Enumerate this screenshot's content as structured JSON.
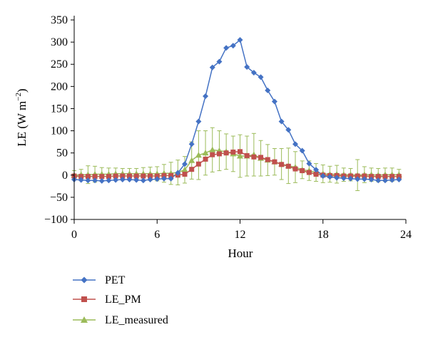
{
  "chart_data": {
    "type": "line",
    "xlabel": "Hour",
    "ylabel_main": "LE (W m",
    "ylabel_sup": "−2",
    "ylabel_close": ")",
    "xlim": [
      0,
      24
    ],
    "ylim": [
      -100,
      350
    ],
    "xticks": [
      "0",
      "6",
      "12",
      "18",
      "24"
    ],
    "yticks": [
      "−100",
      "−50",
      "0",
      "50",
      "100",
      "150",
      "200",
      "250",
      "300",
      "350"
    ],
    "grid": false,
    "legend_position": "bottom-left",
    "x": [
      0,
      0.5,
      1,
      1.5,
      2,
      2.5,
      3,
      3.5,
      4,
      4.5,
      5,
      5.5,
      6,
      6.5,
      7,
      7.5,
      8,
      8.5,
      9,
      9.5,
      10,
      10.5,
      11,
      11.5,
      12,
      12.5,
      13,
      13.5,
      14,
      14.5,
      15,
      15.5,
      16,
      16.5,
      17,
      17.5,
      18,
      18.5,
      19,
      19.5,
      20,
      20.5,
      21,
      21.5,
      22,
      22.5,
      23,
      23.5
    ],
    "series": [
      {
        "name": "PET",
        "color": "#4472C4",
        "marker": "diamond",
        "values": [
          -10,
          -11,
          -12,
          -12,
          -13,
          -12,
          -11,
          -10,
          -10,
          -11,
          -12,
          -10,
          -9,
          -8,
          -8,
          5,
          25,
          70,
          121,
          178,
          243,
          256,
          287,
          292,
          305,
          244,
          231,
          221,
          191,
          166,
          121,
          102,
          70,
          55,
          26,
          12,
          -2,
          -4,
          -6,
          -7,
          -8,
          -9,
          -9,
          -10,
          -12,
          -12,
          -11,
          -10
        ]
      },
      {
        "name": "LE_PM",
        "color": "#C0504D",
        "marker": "square",
        "values": [
          -2,
          -3,
          -3,
          -3,
          -3,
          -3,
          -2,
          -2,
          -2,
          -2,
          -2,
          -2,
          -2,
          -1,
          -1,
          0,
          2,
          13,
          25,
          36,
          46,
          48,
          50,
          52,
          53,
          44,
          41,
          40,
          35,
          30,
          24,
          20,
          14,
          10,
          6,
          2,
          0,
          -1,
          -1,
          -2,
          -2,
          -2,
          -2,
          -3,
          -3,
          -3,
          -3,
          -3
        ]
      },
      {
        "name": "LE_measured",
        "color": "#9BBB59",
        "marker": "triangle",
        "values": [
          0,
          1,
          1,
          2,
          2,
          2,
          3,
          3,
          3,
          3,
          3,
          3,
          3,
          4,
          4,
          6,
          12,
          33,
          45,
          50,
          57,
          55,
          53,
          48,
          43,
          43,
          46,
          38,
          34,
          30,
          25,
          21,
          18,
          12,
          10,
          6,
          3,
          2,
          2,
          1,
          1,
          0,
          1,
          1,
          0,
          1,
          1,
          1
        ],
        "error_bars": [
          10,
          12,
          20,
          18,
          15,
          14,
          13,
          12,
          12,
          12,
          14,
          15,
          16,
          20,
          25,
          28,
          30,
          42,
          55,
          50,
          50,
          45,
          40,
          40,
          48,
          45,
          48,
          40,
          35,
          30,
          35,
          40,
          35,
          20,
          22,
          20,
          20,
          18,
          20,
          15,
          14,
          35,
          18,
          15,
          15,
          15,
          15,
          12
        ]
      }
    ]
  }
}
